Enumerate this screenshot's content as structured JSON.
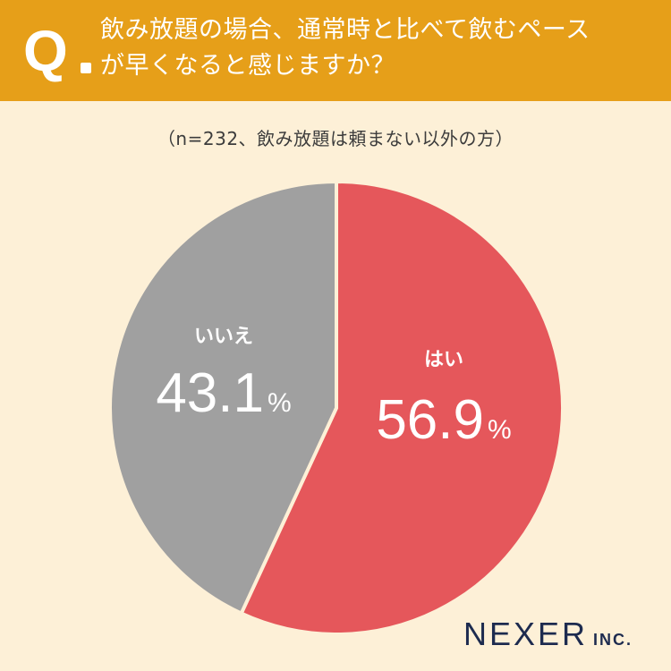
{
  "header": {
    "q_label": "Q",
    "question_line1": "飲み放題の場合、通常時と比べて飲むペース",
    "question_line2": "が早くなると感じますか？"
  },
  "chart_data": {
    "type": "pie",
    "title": "飲み放題の場合、通常時と比べて飲むペースが早くなると感じますか？",
    "subtitle": "（n=232、飲み放題は頼まない以外の方）",
    "slices": [
      {
        "label": "はい",
        "value": 56.9,
        "color": "#e5575b"
      },
      {
        "label": "いいえ",
        "value": 43.1,
        "color": "#a0a0a0"
      }
    ],
    "unit": "%"
  },
  "logo": {
    "main": "NEXER",
    "sub": "INC."
  },
  "colors": {
    "header_bg": "#e69f19",
    "page_bg": "#fdf0d7",
    "yes": "#e5575b",
    "no": "#a0a0a0",
    "logo": "#1d2b4f"
  }
}
